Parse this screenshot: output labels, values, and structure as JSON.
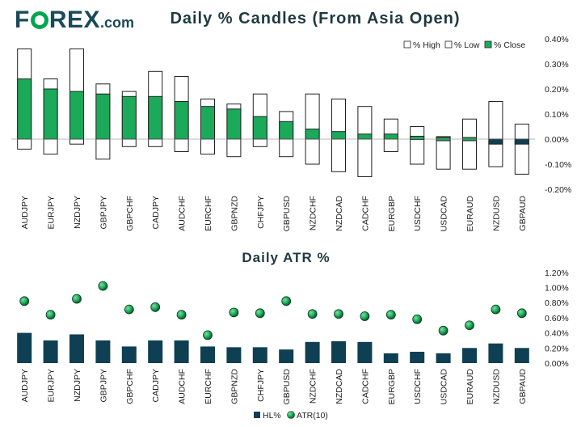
{
  "logo": {
    "prefix": "F",
    "suffix": "REX",
    "domain": ".com"
  },
  "chart_data": [
    {
      "type": "bar",
      "title": "Daily % Candles (From Asia Open)",
      "categories": [
        "AUDJPY",
        "EURJPY",
        "NZDJPY",
        "GBPJPY",
        "GBPCHF",
        "CADJPY",
        "AUDCHF",
        "EURCHF",
        "GBPNZD",
        "CHFJPY",
        "GBPUSD",
        "NZDCHF",
        "NZDCAD",
        "CADCHF",
        "EURGBP",
        "USDCHF",
        "USDCAD",
        "EURAUD",
        "NZDUSD",
        "GBPAUD"
      ],
      "series": [
        {
          "name": "% High",
          "values": [
            0.36,
            0.24,
            0.36,
            0.22,
            0.19,
            0.27,
            0.25,
            0.16,
            0.14,
            0.18,
            0.11,
            0.18,
            0.16,
            0.13,
            0.08,
            0.05,
            0.01,
            0.08,
            0.15,
            0.06
          ]
        },
        {
          "name": "% Low",
          "values": [
            -0.04,
            -0.06,
            -0.02,
            -0.08,
            -0.03,
            -0.03,
            -0.05,
            -0.06,
            -0.07,
            -0.03,
            -0.07,
            -0.1,
            -0.13,
            -0.15,
            -0.05,
            -0.1,
            -0.12,
            -0.12,
            -0.11,
            -0.14
          ]
        },
        {
          "name": "% Close",
          "values": [
            0.24,
            0.2,
            0.19,
            0.18,
            0.17,
            0.17,
            0.15,
            0.13,
            0.12,
            0.09,
            0.07,
            0.04,
            0.03,
            0.02,
            0.02,
            0.01,
            0.0,
            0.0,
            -0.02,
            -0.02
          ]
        }
      ],
      "ylim": [
        -0.2,
        0.4
      ],
      "yticks": [
        "-0.20%",
        "-0.10%",
        "0.00%",
        "0.10%",
        "0.20%",
        "0.30%",
        "0.40%"
      ],
      "legend_position": "top-right",
      "colors": {
        "close": "#1aaa5a",
        "range": "#ffffff",
        "neg_close": "#0e3f52",
        "border": "#222222"
      }
    },
    {
      "type": "bar",
      "title": "Daily ATR %",
      "categories": [
        "AUDJPY",
        "EURJPY",
        "NZDJPY",
        "GBPJPY",
        "GBPCHF",
        "CADJPY",
        "AUDCHF",
        "EURCHF",
        "GBPNZD",
        "CHFJPY",
        "GBPUSD",
        "NZDCHF",
        "NZDCAD",
        "CADCHF",
        "EURGBP",
        "USDCHF",
        "USDCAD",
        "EURAUD",
        "NZDUSD",
        "GBPAUD"
      ],
      "series": [
        {
          "name": "HL%",
          "values": [
            0.4,
            0.3,
            0.38,
            0.3,
            0.22,
            0.3,
            0.3,
            0.22,
            0.21,
            0.21,
            0.18,
            0.28,
            0.29,
            0.28,
            0.13,
            0.15,
            0.13,
            0.2,
            0.26,
            0.2
          ]
        },
        {
          "name": "ATR(10)",
          "values": [
            0.82,
            0.64,
            0.85,
            1.02,
            0.71,
            0.74,
            0.64,
            0.37,
            0.67,
            0.66,
            0.82,
            0.65,
            0.65,
            0.62,
            0.64,
            0.58,
            0.43,
            0.5,
            0.71,
            0.66
          ]
        }
      ],
      "ylim": [
        0,
        1.2
      ],
      "yticks": [
        "0.00%",
        "0.20%",
        "0.40%",
        "0.60%",
        "0.80%",
        "1.00%",
        "1.20%"
      ],
      "legend_position": "bottom",
      "colors": {
        "bar": "#0e3f52",
        "marker": "#1aaa5a"
      }
    }
  ]
}
